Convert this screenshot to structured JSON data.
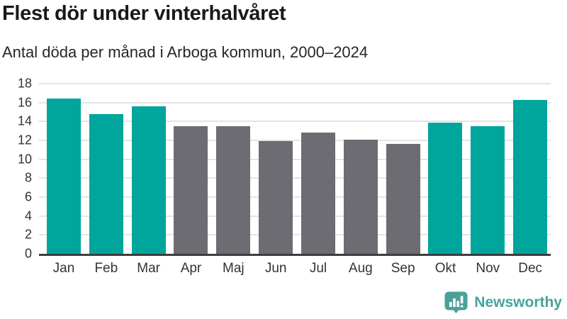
{
  "header": {
    "title": "Flest dör under vinterhalvåret",
    "subtitle": "Antal döda per månad i Arboga kommun, 2000–2024"
  },
  "chart_data": {
    "type": "bar",
    "title": "Flest dör under vinterhalvåret",
    "subtitle": "Antal döda per månad i Arboga kommun, 2000–2024",
    "categories": [
      "Jan",
      "Feb",
      "Mar",
      "Apr",
      "Maj",
      "Jun",
      "Jul",
      "Aug",
      "Sep",
      "Okt",
      "Nov",
      "Dec"
    ],
    "values": [
      16.4,
      14.8,
      15.6,
      13.5,
      13.5,
      11.9,
      12.8,
      12.1,
      11.6,
      13.9,
      13.5,
      16.3
    ],
    "bar_colors": [
      "#00a59b",
      "#00a59b",
      "#00a59b",
      "#6d6c72",
      "#6d6c72",
      "#6d6c72",
      "#6d6c72",
      "#6d6c72",
      "#6d6c72",
      "#00a59b",
      "#00a59b",
      "#00a59b"
    ],
    "highlighted_months": [
      "Jan",
      "Feb",
      "Mar",
      "Okt",
      "Nov",
      "Dec"
    ],
    "xlabel": "",
    "ylabel": "",
    "ylim": [
      0,
      18
    ],
    "yticks": [
      0,
      2,
      4,
      6,
      8,
      10,
      12,
      14,
      16,
      18
    ],
    "grid": "horizontal",
    "legend": "none",
    "colors": {
      "winter_accent": "#00a59b",
      "summer_gray": "#6d6c72",
      "gridline": "#e4e4e4",
      "axis_line": "#3e3e3e"
    }
  },
  "footer": {
    "brand": "Newsworthy",
    "brand_color": "#46a49d",
    "logo_icon": "speech-bubble-bar-chart-exclamation"
  }
}
